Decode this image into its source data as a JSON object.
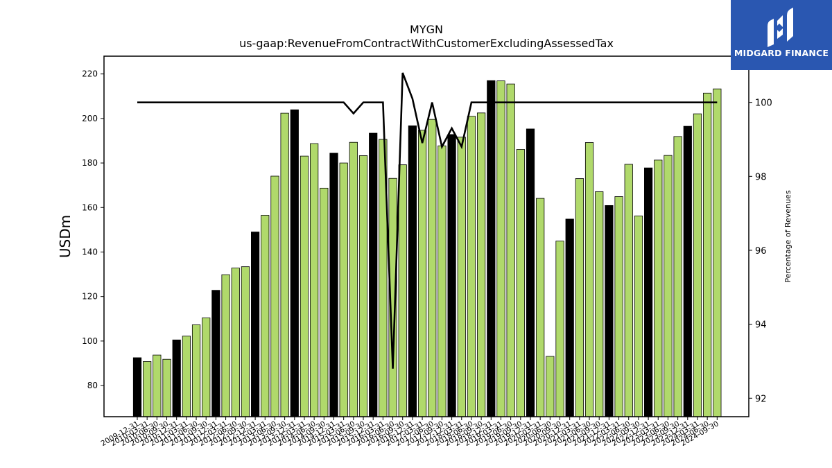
{
  "brand": {
    "name": "MIDGARD FINANCE",
    "logo_icon": "midgard-m-logo-icon",
    "background": "#2a57b1"
  },
  "chart_data": {
    "type": "bar",
    "title": "MYGN",
    "subtitle": "us-gaap:RevenueFromContractWithCustomerExcludingAssessedTax",
    "ylabel": "USDm",
    "y2label": "Percentage of Revenues",
    "ylim": [
      66,
      228
    ],
    "y2lim": [
      91.5,
      101.25
    ],
    "yticks": [
      80,
      100,
      120,
      140,
      160,
      180,
      200,
      220
    ],
    "y2ticks": [
      92,
      94,
      96,
      98,
      100
    ],
    "grid": false,
    "colors": {
      "annual": "#000000",
      "quarterly": "#b0d96b",
      "line": "#000000"
    },
    "categories": [
      "2009-12-31",
      "2010-03-31",
      "2010-06-30",
      "2010-09-30",
      "2010-12-31",
      "2011-03-31",
      "2011-06-30",
      "2011-09-30",
      "2011-12-31",
      "2012-03-31",
      "2012-06-30",
      "2012-09-30",
      "2012-12-31",
      "2013-03-31",
      "2013-06-30",
      "2013-09-30",
      "2013-12-31",
      "2014-03-31",
      "2014-06-30",
      "2014-09-30",
      "2014-12-31",
      "2015-03-31",
      "2015-06-30",
      "2015-09-30",
      "2015-12-31",
      "2016-03-31",
      "2016-06-30",
      "2016-09-30",
      "2016-12-31",
      "2017-03-31",
      "2017-06-30",
      "2017-09-30",
      "2017-12-31",
      "2018-03-31",
      "2018-06-30",
      "2018-09-30",
      "2018-12-31",
      "2019-03-31",
      "2019-06-30",
      "2019-09-30",
      "2019-12-31",
      "2020-03-31",
      "2020-06-30",
      "2020-09-30",
      "2020-12-31",
      "2021-03-31",
      "2021-06-30",
      "2021-09-30",
      "2021-12-31",
      "2022-03-31",
      "2022-06-30",
      "2022-09-30",
      "2022-12-31",
      "2023-03-31",
      "2023-06-30",
      "2023-09-30",
      "2023-12-31",
      "2024-03-31",
      "2024-06-30",
      "2024-09-30"
    ],
    "values": [
      92.5,
      90.8,
      93.7,
      91.8,
      100.5,
      102.2,
      107.3,
      110.4,
      122.8,
      129.8,
      132.8,
      133.4,
      149.0,
      156.5,
      174.1,
      202.4,
      203.9,
      183.1,
      188.7,
      168.7,
      184.4,
      180.0,
      189.3,
      183.3,
      193.4,
      190.6,
      173.1,
      179.2,
      196.7,
      194.7,
      199.6,
      187.7,
      192.8,
      191.6,
      201.0,
      202.5,
      217.0,
      216.9,
      215.5,
      186.1,
      195.3,
      164.1,
      93.1,
      144.9,
      154.8,
      173.0,
      189.2,
      167.1,
      160.9,
      164.9,
      179.4,
      156.2,
      177.8,
      181.3,
      183.4,
      191.9,
      196.5,
      202.1,
      211.4,
      213.3
    ],
    "annual": [
      true,
      false,
      false,
      false,
      true,
      false,
      false,
      false,
      true,
      false,
      false,
      false,
      true,
      false,
      false,
      false,
      true,
      false,
      false,
      false,
      true,
      false,
      false,
      false,
      true,
      false,
      false,
      false,
      true,
      false,
      false,
      false,
      true,
      false,
      false,
      false,
      true,
      false,
      false,
      false,
      true,
      false,
      false,
      false,
      true,
      false,
      false,
      false,
      true,
      false,
      false,
      false,
      true,
      false,
      false,
      false,
      true,
      false,
      false,
      false
    ],
    "line_values": [
      100,
      100,
      100,
      100,
      100,
      100,
      100,
      100,
      100,
      100,
      100,
      100,
      100,
      100,
      100,
      100,
      100,
      100,
      100,
      100,
      100,
      100,
      99.7,
      100,
      100,
      100,
      92.8,
      100.8,
      100.1,
      98.9,
      100,
      98.8,
      99.3,
      98.8,
      100,
      100,
      100,
      100,
      100,
      100,
      100,
      100,
      100,
      100,
      100,
      100,
      100,
      100,
      100,
      100,
      100,
      100,
      100,
      100,
      100,
      100,
      100,
      100,
      100,
      100
    ]
  }
}
